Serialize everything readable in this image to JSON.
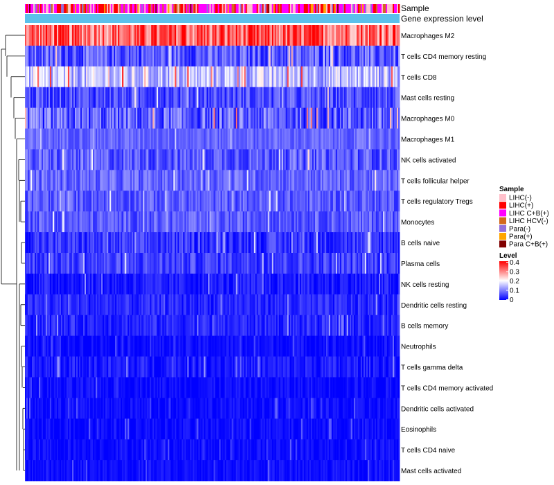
{
  "chart_data": {
    "type": "heatmap",
    "annotation_tracks": [
      "Sample",
      "Gene expression level"
    ],
    "rows": [
      {
        "label": "Macrophages M2",
        "mean": 0.32,
        "spread": 0.09
      },
      {
        "label": "T cells CD4 memory resting",
        "mean": 0.07,
        "spread": 0.06
      },
      {
        "label": "T cells CD8",
        "mean": 0.15,
        "spread": 0.07
      },
      {
        "label": "Mast cells resting",
        "mean": 0.06,
        "spread": 0.05
      },
      {
        "label": "Macrophages M0",
        "mean": 0.07,
        "spread": 0.07
      },
      {
        "label": "Macrophages M1",
        "mean": 0.08,
        "spread": 0.03
      },
      {
        "label": "NK cells activated",
        "mean": 0.07,
        "spread": 0.05
      },
      {
        "label": "T cells follicular helper",
        "mean": 0.08,
        "spread": 0.04
      },
      {
        "label": "T cells regulatory  Tregs",
        "mean": 0.07,
        "spread": 0.04
      },
      {
        "label": "Monocytes",
        "mean": 0.07,
        "spread": 0.04
      },
      {
        "label": "B cells naive",
        "mean": 0.04,
        "spread": 0.04
      },
      {
        "label": "Plasma cells",
        "mean": 0.05,
        "spread": 0.04
      },
      {
        "label": "NK cells resting",
        "mean": 0.02,
        "spread": 0.03
      },
      {
        "label": "Dendritic cells resting",
        "mean": 0.03,
        "spread": 0.03
      },
      {
        "label": "B cells memory",
        "mean": 0.03,
        "spread": 0.03
      },
      {
        "label": "Neutrophils",
        "mean": 0.01,
        "spread": 0.02
      },
      {
        "label": "T cells gamma delta",
        "mean": 0.02,
        "spread": 0.03
      },
      {
        "label": "T cells CD4 memory activated",
        "mean": 0.01,
        "spread": 0.02
      },
      {
        "label": "Dendritic cells activated",
        "mean": 0.01,
        "spread": 0.02
      },
      {
        "label": "Eosinophils",
        "mean": 0.01,
        "spread": 0.02
      },
      {
        "label": "T cells CD4 naive",
        "mean": 0.01,
        "spread": 0.02
      },
      {
        "label": "Mast cells activated",
        "mean": 0.01,
        "spread": 0.02
      }
    ],
    "n_samples": 270,
    "legend_sample": {
      "title": "Sample",
      "items": [
        {
          "label": "LIHC(-)",
          "color": "#FFC0CB"
        },
        {
          "label": "LIHC(+)",
          "color": "#FF0000"
        },
        {
          "label": "LIHC C+B(+)",
          "color": "#FF00FF"
        },
        {
          "label": "LIHC HCV(-)",
          "color": "#D2691E"
        },
        {
          "label": "Para(-)",
          "color": "#9370DB"
        },
        {
          "label": "Para(+)",
          "color": "#FFA500"
        },
        {
          "label": "Para C+B(+)",
          "color": "#800000"
        }
      ]
    },
    "legend_level": {
      "title": "Level",
      "ticks": [
        "0.4",
        "0.3",
        "0.2",
        "0.1",
        "0"
      ],
      "range": [
        0,
        0.4
      ],
      "colors": {
        "low": "#0000FF",
        "mid": "#FFFFFF",
        "high": "#FF0000"
      }
    },
    "gene_expression_color": "#5BC0EB"
  }
}
